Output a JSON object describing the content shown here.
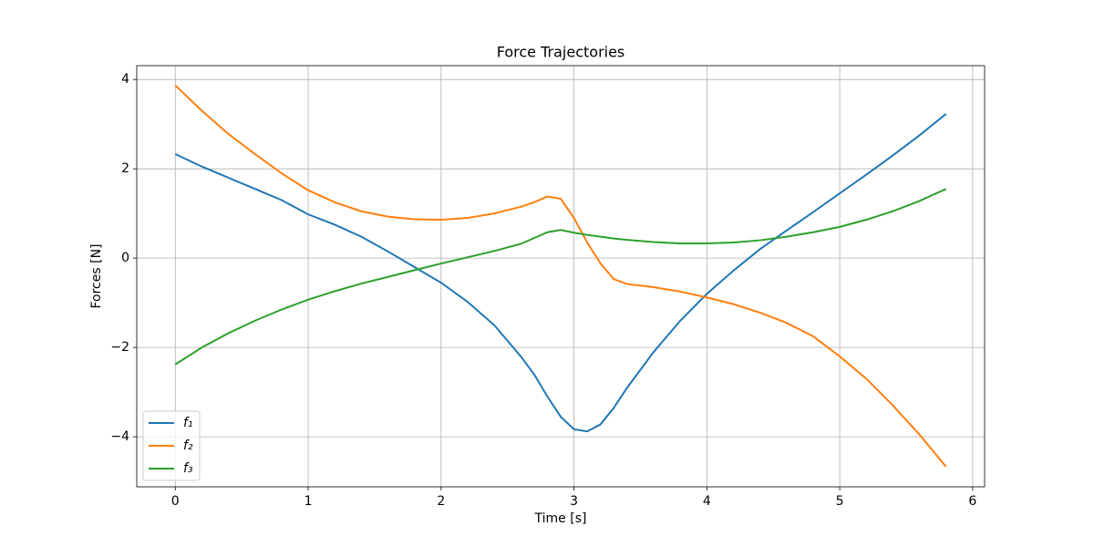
{
  "chart_data": {
    "type": "line",
    "title": "Force Trajectories",
    "xlabel": "Time [s]",
    "ylabel": "Forces [N]",
    "x": [
      0,
      0.2,
      0.4,
      0.6,
      0.8,
      1.0,
      1.2,
      1.4,
      1.6,
      1.8,
      2.0,
      2.2,
      2.4,
      2.6,
      2.7,
      2.8,
      2.9,
      3.0,
      3.1,
      3.2,
      3.3,
      3.4,
      3.6,
      3.8,
      4.0,
      4.2,
      4.4,
      4.6,
      4.8,
      5.0,
      5.2,
      5.4,
      5.6,
      5.8
    ],
    "series": [
      {
        "name": "f₁",
        "color": "#1f77b4",
        "values": [
          2.33,
          2.05,
          1.8,
          1.55,
          1.3,
          0.98,
          0.75,
          0.48,
          0.15,
          -0.2,
          -0.55,
          -0.98,
          -1.5,
          -2.2,
          -2.6,
          -3.1,
          -3.55,
          -3.83,
          -3.88,
          -3.72,
          -3.35,
          -2.9,
          -2.1,
          -1.4,
          -0.8,
          -0.28,
          0.2,
          0.62,
          1.03,
          1.45,
          1.87,
          2.3,
          2.75,
          3.23
        ]
      },
      {
        "name": "f₂",
        "color": "#ff7f0e",
        "values": [
          3.87,
          3.3,
          2.78,
          2.33,
          1.9,
          1.52,
          1.25,
          1.05,
          0.93,
          0.87,
          0.86,
          0.9,
          1.0,
          1.15,
          1.25,
          1.38,
          1.33,
          0.9,
          0.35,
          -0.12,
          -0.47,
          -0.58,
          -0.65,
          -0.75,
          -0.88,
          -1.03,
          -1.22,
          -1.45,
          -1.75,
          -2.2,
          -2.7,
          -3.3,
          -3.95,
          -4.67
        ]
      },
      {
        "name": "f₃",
        "color": "#2ca02c",
        "values": [
          -2.38,
          -2.0,
          -1.68,
          -1.4,
          -1.15,
          -0.93,
          -0.74,
          -0.57,
          -0.42,
          -0.27,
          -0.12,
          0.02,
          0.16,
          0.32,
          0.45,
          0.58,
          0.63,
          0.57,
          0.52,
          0.48,
          0.44,
          0.41,
          0.36,
          0.33,
          0.33,
          0.35,
          0.4,
          0.48,
          0.58,
          0.7,
          0.86,
          1.05,
          1.28,
          1.55
        ]
      }
    ],
    "xlim": [
      -0.29,
      6.09
    ],
    "xticks": [
      0,
      1,
      2,
      3,
      4,
      5,
      6
    ],
    "ylim": [
      -5.12,
      4.31
    ],
    "yticks": [
      {
        "value": -4,
        "label": "−4"
      },
      {
        "value": -2,
        "label": "−2"
      },
      0,
      2,
      4
    ],
    "grid": true,
    "legend": "lower left"
  }
}
